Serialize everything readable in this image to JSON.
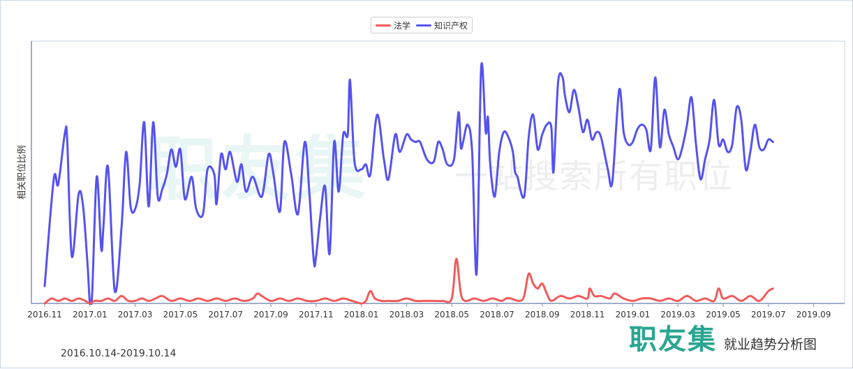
{
  "legend": {
    "items": [
      {
        "label": "法学",
        "color": "#f25a5a"
      },
      {
        "label": "知识产权",
        "color": "#5552f0"
      }
    ]
  },
  "y_axis_label": "相关职位比例",
  "date_range": "2016.10.14-2019.10.14",
  "brand": {
    "logo": "职友集",
    "subtitle": "就业趋势分析图"
  },
  "watermark": {
    "main": "职友集",
    "sub": "一站搜索所有职位"
  },
  "chart_data": {
    "type": "line",
    "title": "",
    "xlabel": "",
    "ylabel": "相关职位比例",
    "x_ticks": [
      "2016.11",
      "2017.01",
      "2017.03",
      "2017.05",
      "2017.07",
      "2017.09",
      "2017.11",
      "2018.01",
      "2018.03",
      "2018.05",
      "2018.07",
      "2018.09",
      "2018.11",
      "2019.01",
      "2019.03",
      "2019.05",
      "2019.07",
      "2019.09"
    ],
    "ylim": [
      0,
      100
    ],
    "grid": false,
    "legend_position": "top-center",
    "series": [
      {
        "name": "知识产权",
        "color": "#5552f0",
        "points": [
          [
            0,
            7
          ],
          [
            0.2,
            50
          ],
          [
            0.3,
            48
          ],
          [
            0.45,
            69
          ],
          [
            0.5,
            65
          ],
          [
            0.6,
            19
          ],
          [
            0.75,
            44
          ],
          [
            0.85,
            39
          ],
          [
            0.95,
            15
          ],
          [
            1.0,
            0
          ],
          [
            1.05,
            4
          ],
          [
            1.15,
            51
          ],
          [
            1.25,
            22
          ],
          [
            1.3,
            31
          ],
          [
            1.4,
            55
          ],
          [
            1.55,
            5
          ],
          [
            1.7,
            31
          ],
          [
            1.8,
            61
          ],
          [
            1.9,
            39
          ],
          [
            2.0,
            38
          ],
          [
            2.1,
            48
          ],
          [
            2.2,
            73
          ],
          [
            2.3,
            39
          ],
          [
            2.4,
            73
          ],
          [
            2.5,
            43
          ],
          [
            2.6,
            46
          ],
          [
            2.7,
            52
          ],
          [
            2.8,
            62
          ],
          [
            2.9,
            55
          ],
          [
            3.0,
            62
          ],
          [
            3.1,
            42
          ],
          [
            3.25,
            51
          ],
          [
            3.35,
            38
          ],
          [
            3.5,
            36
          ],
          [
            3.6,
            54
          ],
          [
            3.75,
            52
          ],
          [
            3.8,
            40
          ],
          [
            3.9,
            60
          ],
          [
            4.0,
            54
          ],
          [
            4.1,
            61
          ],
          [
            4.25,
            49
          ],
          [
            4.35,
            56
          ],
          [
            4.45,
            45
          ],
          [
            4.6,
            51
          ],
          [
            4.8,
            43
          ],
          [
            4.95,
            60
          ],
          [
            5.05,
            53
          ],
          [
            5.2,
            37
          ],
          [
            5.3,
            65
          ],
          [
            5.45,
            52
          ],
          [
            5.6,
            36
          ],
          [
            5.75,
            65
          ],
          [
            5.85,
            45
          ],
          [
            5.95,
            17
          ],
          [
            6.0,
            19
          ],
          [
            6.1,
            36
          ],
          [
            6.2,
            47
          ],
          [
            6.3,
            20
          ],
          [
            6.4,
            65
          ],
          [
            6.5,
            45
          ],
          [
            6.6,
            68
          ],
          [
            6.7,
            68
          ],
          [
            6.75,
            90
          ],
          [
            6.85,
            57
          ],
          [
            7.0,
            54
          ],
          [
            7.1,
            56
          ],
          [
            7.2,
            52
          ],
          [
            7.35,
            76
          ],
          [
            7.5,
            58
          ],
          [
            7.6,
            50
          ],
          [
            7.75,
            68
          ],
          [
            7.85,
            61
          ],
          [
            8.0,
            68
          ],
          [
            8.1,
            66
          ],
          [
            8.2,
            65
          ],
          [
            8.3,
            65
          ],
          [
            8.45,
            58
          ],
          [
            8.6,
            57
          ],
          [
            8.7,
            65
          ],
          [
            8.8,
            62
          ],
          [
            8.9,
            56
          ],
          [
            9.05,
            58
          ],
          [
            9.15,
            77
          ],
          [
            9.2,
            63
          ],
          [
            9.25,
            65
          ],
          [
            9.35,
            72
          ],
          [
            9.45,
            61
          ],
          [
            9.55,
            12
          ],
          [
            9.65,
            95
          ],
          [
            9.75,
            69
          ],
          [
            9.8,
            75
          ],
          [
            9.85,
            56
          ],
          [
            9.95,
            43
          ],
          [
            10.05,
            61
          ],
          [
            10.15,
            69
          ],
          [
            10.25,
            67
          ],
          [
            10.35,
            61
          ],
          [
            10.4,
            53
          ],
          [
            10.45,
            51
          ],
          [
            10.6,
            43
          ],
          [
            10.7,
            67
          ],
          [
            10.8,
            76
          ],
          [
            10.9,
            62
          ],
          [
            11.0,
            68
          ],
          [
            11.1,
            72
          ],
          [
            11.2,
            71
          ],
          [
            11.25,
            53
          ],
          [
            11.35,
            89
          ],
          [
            11.45,
            91
          ],
          [
            11.5,
            84
          ],
          [
            11.6,
            77
          ],
          [
            11.7,
            86
          ],
          [
            11.8,
            79
          ],
          [
            11.9,
            69
          ],
          [
            12.0,
            74
          ],
          [
            12.1,
            66
          ],
          [
            12.2,
            69
          ],
          [
            12.3,
            67
          ],
          [
            12.45,
            54
          ],
          [
            12.55,
            49
          ],
          [
            12.7,
            86
          ],
          [
            12.8,
            69
          ],
          [
            12.9,
            64
          ],
          [
            13.0,
            65
          ],
          [
            13.1,
            70
          ],
          [
            13.2,
            72
          ],
          [
            13.3,
            70
          ],
          [
            13.4,
            62
          ],
          [
            13.5,
            91
          ],
          [
            13.6,
            63
          ],
          [
            13.7,
            78
          ],
          [
            13.8,
            68
          ],
          [
            13.9,
            63
          ],
          [
            14.0,
            58
          ],
          [
            14.1,
            63
          ],
          [
            14.2,
            72
          ],
          [
            14.3,
            83
          ],
          [
            14.4,
            64
          ],
          [
            14.5,
            50
          ],
          [
            14.6,
            58
          ],
          [
            14.7,
            66
          ],
          [
            14.8,
            82
          ],
          [
            14.9,
            64
          ],
          [
            15.0,
            66
          ],
          [
            15.1,
            61
          ],
          [
            15.2,
            64
          ],
          [
            15.3,
            79
          ],
          [
            15.4,
            74
          ],
          [
            15.5,
            54
          ],
          [
            15.6,
            61
          ],
          [
            15.7,
            72
          ],
          [
            15.8,
            63
          ],
          [
            15.9,
            62
          ],
          [
            16.0,
            66
          ],
          [
            16.1,
            65
          ]
        ]
      },
      {
        "name": "法学",
        "color": "#f25a5a",
        "points": [
          [
            0,
            0
          ],
          [
            0.15,
            2
          ],
          [
            0.3,
            1
          ],
          [
            0.45,
            2
          ],
          [
            0.6,
            1
          ],
          [
            0.75,
            2
          ],
          [
            0.9,
            1
          ],
          [
            1.0,
            0
          ],
          [
            1.1,
            1
          ],
          [
            1.25,
            1
          ],
          [
            1.4,
            2
          ],
          [
            1.55,
            1
          ],
          [
            1.7,
            3
          ],
          [
            1.85,
            1
          ],
          [
            2.0,
            1
          ],
          [
            2.15,
            2
          ],
          [
            2.3,
            1
          ],
          [
            2.45,
            2
          ],
          [
            2.6,
            3
          ],
          [
            2.8,
            1
          ],
          [
            3.0,
            2
          ],
          [
            3.2,
            1
          ],
          [
            3.4,
            2
          ],
          [
            3.6,
            1
          ],
          [
            3.8,
            2
          ],
          [
            4.0,
            1
          ],
          [
            4.2,
            2
          ],
          [
            4.4,
            1
          ],
          [
            4.6,
            2
          ],
          [
            4.7,
            4
          ],
          [
            4.8,
            3
          ],
          [
            5.0,
            1
          ],
          [
            5.2,
            2
          ],
          [
            5.4,
            1
          ],
          [
            5.6,
            2
          ],
          [
            5.8,
            1
          ],
          [
            6.0,
            1
          ],
          [
            6.2,
            2
          ],
          [
            6.4,
            1
          ],
          [
            6.6,
            2
          ],
          [
            6.8,
            1
          ],
          [
            7.0,
            0
          ],
          [
            7.1,
            1
          ],
          [
            7.2,
            5
          ],
          [
            7.3,
            2
          ],
          [
            7.45,
            1
          ],
          [
            7.6,
            1
          ],
          [
            7.8,
            1
          ],
          [
            8.0,
            2
          ],
          [
            8.2,
            1
          ],
          [
            8.4,
            1
          ],
          [
            8.6,
            1
          ],
          [
            8.8,
            1
          ],
          [
            9.0,
            2
          ],
          [
            9.1,
            18
          ],
          [
            9.2,
            4
          ],
          [
            9.3,
            1
          ],
          [
            9.5,
            2
          ],
          [
            9.7,
            1
          ],
          [
            9.9,
            2
          ],
          [
            10.1,
            1
          ],
          [
            10.2,
            2
          ],
          [
            10.3,
            2
          ],
          [
            10.5,
            1
          ],
          [
            10.6,
            3
          ],
          [
            10.7,
            12
          ],
          [
            10.8,
            8
          ],
          [
            10.9,
            6
          ],
          [
            11.0,
            8
          ],
          [
            11.1,
            4
          ],
          [
            11.2,
            1
          ],
          [
            11.4,
            3
          ],
          [
            11.6,
            2
          ],
          [
            11.8,
            3
          ],
          [
            12.0,
            2
          ],
          [
            12.05,
            6
          ],
          [
            12.15,
            3
          ],
          [
            12.3,
            3
          ],
          [
            12.5,
            2
          ],
          [
            12.6,
            4
          ],
          [
            12.8,
            2
          ],
          [
            13.0,
            1
          ],
          [
            13.2,
            2
          ],
          [
            13.4,
            2
          ],
          [
            13.6,
            1
          ],
          [
            13.8,
            2
          ],
          [
            14.0,
            1
          ],
          [
            14.2,
            3
          ],
          [
            14.4,
            1
          ],
          [
            14.6,
            2
          ],
          [
            14.8,
            1
          ],
          [
            14.9,
            6
          ],
          [
            15.0,
            2
          ],
          [
            15.2,
            3
          ],
          [
            15.4,
            1
          ],
          [
            15.6,
            3
          ],
          [
            15.8,
            1
          ],
          [
            16.0,
            5
          ],
          [
            16.1,
            6
          ]
        ]
      }
    ]
  }
}
